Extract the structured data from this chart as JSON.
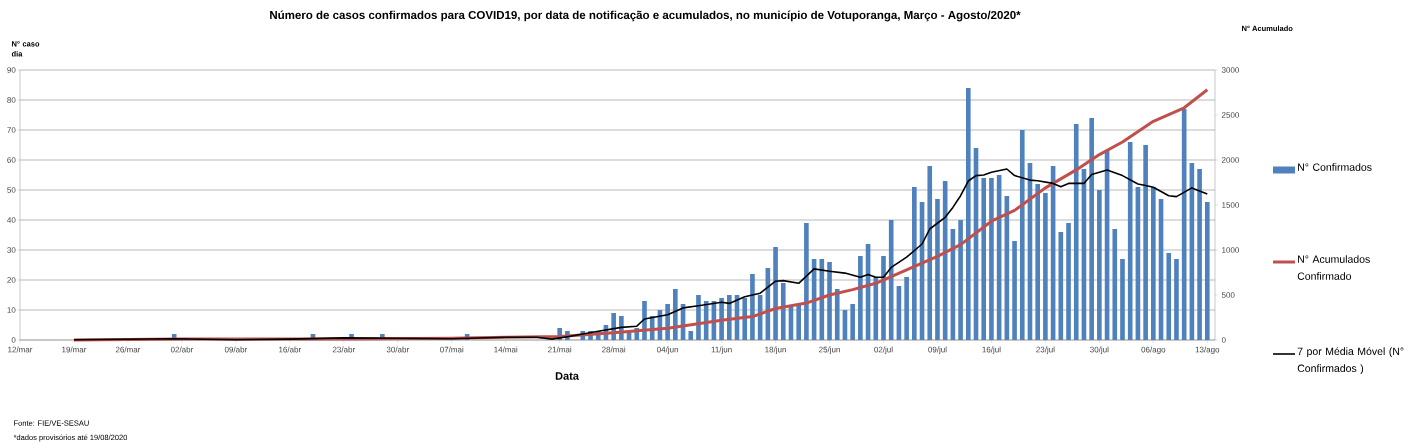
{
  "chart_data": {
    "type": "bar",
    "title": "Número de casos  confirmados para COVID19,  por data de notificação e acumulados,  no município de Votuporanga,  Março - Agosto/2020*",
    "xlabel": "Data",
    "ylabel": "N° caso dia",
    "y2label": "N° Acumulado",
    "annotations": [
      "Fonte: FIE/VE-SESAU",
      "*dados provisórios até 19/08/2020"
    ],
    "xlim": [
      "2020-03-12",
      "2020-08-14"
    ],
    "xticks": [
      {
        "value": "2020-03-12",
        "label": "12/mar"
      },
      {
        "value": "2020-03-19",
        "label": "19/mar"
      },
      {
        "value": "2020-03-26",
        "label": "26/mar"
      },
      {
        "value": "2020-04-02",
        "label": "02/abr"
      },
      {
        "value": "2020-04-09",
        "label": "09/abr"
      },
      {
        "value": "2020-04-16",
        "label": "16/abr"
      },
      {
        "value": "2020-04-23",
        "label": "23/abr"
      },
      {
        "value": "2020-04-30",
        "label": "30/abr"
      },
      {
        "value": "2020-05-07",
        "label": "07/mai"
      },
      {
        "value": "2020-05-14",
        "label": "14/mai"
      },
      {
        "value": "2020-05-21",
        "label": "21/mai"
      },
      {
        "value": "2020-05-28",
        "label": "28/mai"
      },
      {
        "value": "2020-06-04",
        "label": "04/jun"
      },
      {
        "value": "2020-06-11",
        "label": "11/jun"
      },
      {
        "value": "2020-06-18",
        "label": "18/jun"
      },
      {
        "value": "2020-06-25",
        "label": "25/jun"
      },
      {
        "value": "2020-07-02",
        "label": "02/jul"
      },
      {
        "value": "2020-07-09",
        "label": "09/jul"
      },
      {
        "value": "2020-07-16",
        "label": "16/jul"
      },
      {
        "value": "2020-07-23",
        "label": "23/jul"
      },
      {
        "value": "2020-07-30",
        "label": "30/jul"
      },
      {
        "value": "2020-08-06",
        "label": "06/ago"
      },
      {
        "value": "2020-08-13",
        "label": "13/ago"
      }
    ],
    "ylim": [
      0,
      90
    ],
    "yticks": [
      0,
      10,
      20,
      30,
      40,
      50,
      60,
      70,
      80,
      90
    ],
    "y2lim": [
      0,
      3000
    ],
    "y2ticks": [
      0,
      500,
      1000,
      1500,
      2000,
      2500,
      3000
    ],
    "grid": "y",
    "legend": "right",
    "series": [
      {
        "name": "N° Confirmados",
        "color": "#4f81bd",
        "x": [
          "2020-04-01",
          "2020-04-19",
          "2020-04-24",
          "2020-04-28",
          "2020-05-09",
          "2020-05-21",
          "2020-05-22",
          "2020-05-23",
          "2020-05-24",
          "2020-05-25",
          "2020-05-26",
          "2020-05-27",
          "2020-05-28",
          "2020-05-29",
          "2020-05-30",
          "2020-05-31",
          "2020-06-01",
          "2020-06-02",
          "2020-06-03",
          "2020-06-04",
          "2020-06-05",
          "2020-06-06",
          "2020-06-07",
          "2020-06-08",
          "2020-06-09",
          "2020-06-10",
          "2020-06-11",
          "2020-06-12",
          "2020-06-13",
          "2020-06-14",
          "2020-06-15",
          "2020-06-16",
          "2020-06-17",
          "2020-06-18",
          "2020-06-19",
          "2020-06-20",
          "2020-06-21",
          "2020-06-22",
          "2020-06-23",
          "2020-06-24",
          "2020-06-25",
          "2020-06-26",
          "2020-06-27",
          "2020-06-28",
          "2020-06-29",
          "2020-06-30",
          "2020-07-01",
          "2020-07-02",
          "2020-07-03",
          "2020-07-04",
          "2020-07-05",
          "2020-07-06",
          "2020-07-07",
          "2020-07-08",
          "2020-07-09",
          "2020-07-10",
          "2020-07-11",
          "2020-07-12",
          "2020-07-13",
          "2020-07-14",
          "2020-07-15",
          "2020-07-16",
          "2020-07-17",
          "2020-07-18",
          "2020-07-19",
          "2020-07-20",
          "2020-07-21",
          "2020-07-22",
          "2020-07-23",
          "2020-07-24",
          "2020-07-25",
          "2020-07-26",
          "2020-07-27",
          "2020-07-28",
          "2020-07-29",
          "2020-07-30",
          "2020-07-31",
          "2020-08-01",
          "2020-08-02",
          "2020-08-03",
          "2020-08-04",
          "2020-08-05",
          "2020-08-06",
          "2020-08-07",
          "2020-08-08",
          "2020-08-09",
          "2020-08-10",
          "2020-08-11",
          "2020-08-12",
          "2020-08-13"
        ],
        "values": [
          2,
          2,
          2,
          2,
          2,
          4,
          3,
          null,
          3,
          3,
          3,
          5,
          9,
          8,
          3,
          4,
          13,
          8,
          10,
          12,
          17,
          12,
          3,
          15,
          13,
          13,
          14,
          15,
          15,
          14,
          22,
          15,
          24,
          31,
          19,
          11,
          12,
          39,
          27,
          27,
          26,
          17,
          10,
          12,
          28,
          32,
          21,
          28,
          40,
          18,
          21,
          51,
          46,
          58,
          47,
          53,
          37,
          40,
          84,
          64,
          54,
          54,
          55,
          48,
          33,
          70,
          59,
          52,
          49,
          58,
          36,
          39,
          72,
          57,
          74,
          50,
          63,
          37,
          27,
          66,
          51,
          65,
          51,
          47,
          29,
          27,
          77,
          59,
          57,
          46
        ]
      },
      {
        "name": "N° Acumulados Confirmado",
        "type": "line",
        "axis": "y2",
        "color": "#c0504d",
        "x": [
          "2020-03-19",
          "2020-04-02",
          "2020-04-16",
          "2020-04-23",
          "2020-05-07",
          "2020-05-14",
          "2020-05-21",
          "2020-05-28",
          "2020-06-04",
          "2020-06-11",
          "2020-06-15",
          "2020-06-18",
          "2020-06-22",
          "2020-06-25",
          "2020-06-28",
          "2020-07-01",
          "2020-07-09",
          "2020-07-12",
          "2020-07-16",
          "2020-07-19",
          "2020-07-23",
          "2020-07-27",
          "2020-07-30",
          "2020-08-02",
          "2020-08-06",
          "2020-08-10",
          "2020-08-13"
        ],
        "values": [
          0,
          10,
          10,
          10,
          20,
          30,
          40,
          80,
          130,
          220,
          260,
          350,
          410,
          500,
          560,
          630,
          930,
          1060,
          1320,
          1440,
          1690,
          1890,
          2060,
          2200,
          2430,
          2580,
          2780
        ]
      },
      {
        "name": "7 por Média Móvel (N° Confirmados )",
        "type": "line",
        "color": "#000000",
        "x": [
          "2020-03-19",
          "2020-04-01",
          "2020-04-09",
          "2020-04-16",
          "2020-04-23",
          "2020-04-30",
          "2020-05-07",
          "2020-05-14",
          "2020-05-18",
          "2020-05-20",
          "2020-05-22",
          "2020-05-26",
          "2020-05-29",
          "2020-05-31",
          "2020-06-01",
          "2020-06-04",
          "2020-06-06",
          "2020-06-08",
          "2020-06-11",
          "2020-06-12",
          "2020-06-14",
          "2020-06-16",
          "2020-06-18",
          "2020-06-19",
          "2020-06-21",
          "2020-06-23",
          "2020-06-25",
          "2020-06-27",
          "2020-06-29",
          "2020-06-30",
          "2020-07-01",
          "2020-07-02",
          "2020-07-03",
          "2020-07-05",
          "2020-07-07",
          "2020-07-08",
          "2020-07-10",
          "2020-07-11",
          "2020-07-12",
          "2020-07-13",
          "2020-07-14",
          "2020-07-15",
          "2020-07-16",
          "2020-07-18",
          "2020-07-19",
          "2020-07-21",
          "2020-07-22",
          "2020-07-24",
          "2020-07-25",
          "2020-07-26",
          "2020-07-28",
          "2020-07-29",
          "2020-07-31",
          "2020-08-02",
          "2020-08-04",
          "2020-08-05",
          "2020-08-06",
          "2020-08-08",
          "2020-08-09",
          "2020-08-11",
          "2020-08-13"
        ],
        "values": [
          0.1,
          0.4,
          0.1,
          0.3,
          0.7,
          0.6,
          0.4,
          0.9,
          0.9,
          0.3,
          1.1,
          2.9,
          4.2,
          4.6,
          7,
          8.4,
          10.7,
          11.4,
          12.6,
          12.2,
          14.4,
          15.6,
          19.6,
          19.8,
          18.9,
          23.7,
          22.9,
          22.3,
          20.9,
          21.8,
          20.9,
          20.9,
          24.2,
          27.6,
          32,
          37,
          40.9,
          44.2,
          48.1,
          53,
          54.8,
          55,
          55.9,
          57,
          54.8,
          53.3,
          53.1,
          52.2,
          51.1,
          52.2,
          52.2,
          55.2,
          56.7,
          54.8,
          52,
          51.5,
          50.9,
          48.1,
          47.8,
          50.7,
          48.7
        ]
      }
    ]
  }
}
